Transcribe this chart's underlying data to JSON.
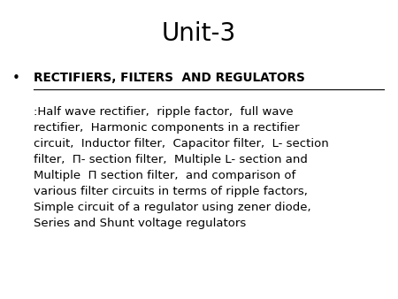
{
  "title": "Unit-3",
  "title_fontsize": 20,
  "bg_color": "#ffffff",
  "text_color": "#000000",
  "bullet_char": "•",
  "heading_bold": "RECTIFIERS, FILTERS  AND REGULATORS",
  "body_text": ":Half wave rectifier,  ripple factor,  full wave\nrectifier,  Harmonic components in a rectifier\ncircuit,  Inductor filter,  Capacitor filter,  L- section\nfilter,  Π- section filter,  Multiple L- section and\nMultiple  Π section filter,  and comparison of\nvarious filter circuits in terms of ripple factors,\nSimple circuit of a regulator using zener diode,\nSeries and Shunt voltage regulators",
  "body_fontsize": 9.5,
  "heading_fontsize": 9.8,
  "figwidth": 4.5,
  "figheight": 3.38,
  "dpi": 100
}
